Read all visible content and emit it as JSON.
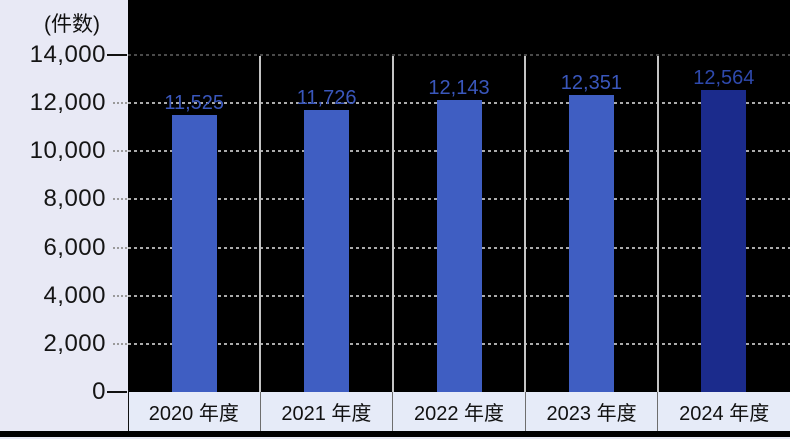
{
  "chart_data": {
    "type": "bar",
    "title": "",
    "xlabel": "",
    "ylabel": "(件数)",
    "categories": [
      "2020 年度",
      "2021 年度",
      "2022 年度",
      "2023 年度",
      "2024 年度"
    ],
    "values": [
      11525,
      11726,
      12143,
      12351,
      12564
    ],
    "value_labels": [
      "11,525",
      "11,726",
      "12,143",
      "12,351",
      "12,564"
    ],
    "ylim": [
      0,
      14000
    ],
    "ytick_interval": 2000,
    "ytick_labels": [
      "0",
      "2,000",
      "4,000",
      "6,000",
      "8,000",
      "10,000",
      "12,000",
      "14,000"
    ],
    "grid": "horizontal-dotted",
    "legend": "none",
    "bar_colors": [
      "#3F5EC2",
      "#3F5EC2",
      "#3F5EC2",
      "#3F5EC2",
      "#1B2B8C"
    ],
    "value_label_colors": [
      "#3A57BC",
      "#3A57BC",
      "#3A57BC",
      "#3A57BC",
      "#2E49AC"
    ],
    "colors": {
      "page_background": "#E8E9F5",
      "plot_background": "#000000",
      "gridline": "#ABABAB",
      "gridline_top": "#4A4A4A",
      "category_separator": "#C4C4C4",
      "axis_text": "#111111"
    }
  }
}
